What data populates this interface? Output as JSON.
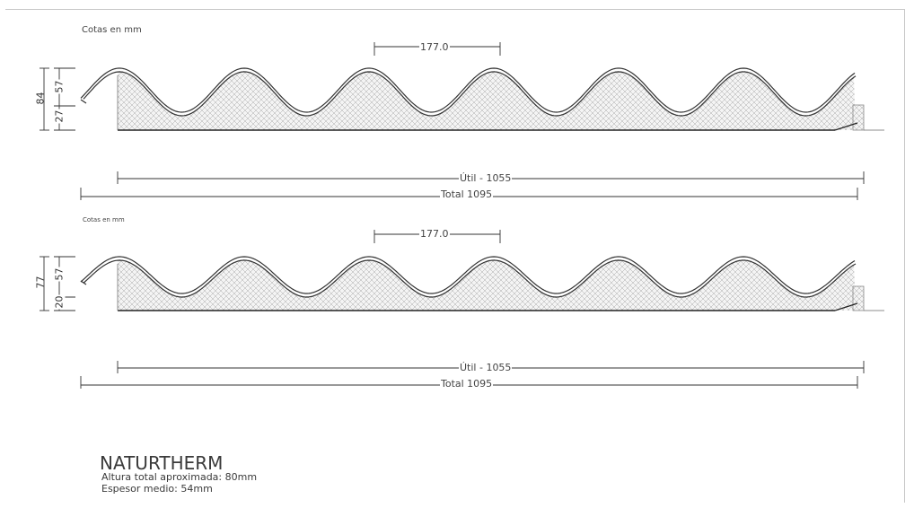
{
  "units_label_1": "Cotas en mm",
  "units_label_2": "Cotas en mm",
  "profile_1": {
    "pitch": "177.0",
    "height_total": "84",
    "height_wave": "57",
    "height_base": "27",
    "useful_width": "Útil - 1055",
    "total_width": "Total 1095"
  },
  "profile_2": {
    "pitch": "177.0",
    "height_total": "77",
    "height_wave": "57",
    "height_base": "20",
    "useful_width": "Útil - 1055",
    "total_width": "Total 1095"
  },
  "product": {
    "name": "NATURTHERM",
    "line_1": "Altura total aproximada: 80mm",
    "line_2": "Espesor medio: 54mm"
  },
  "colors": {
    "line": "#333333",
    "hatch": "#9a9a9a",
    "fill": "#f2f2f2"
  }
}
